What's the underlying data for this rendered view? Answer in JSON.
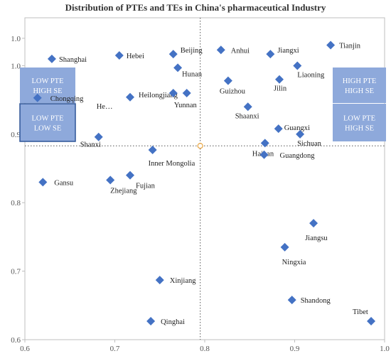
{
  "chart_data": {
    "type": "scatter",
    "title": "Distribution of PTEs and TEs in China's pharmaceutical Industry",
    "xlabel": "",
    "ylabel": "",
    "xlim": [
      0.6,
      1.0
    ],
    "x_ticks": [
      "0.6",
      "0.7",
      "0.8",
      "0.9",
      "1.0"
    ],
    "y_ticks": [
      "0.6",
      "0.7",
      "0.8",
      "0.9",
      "1.0",
      "1.0"
    ],
    "y_tick_values": [
      0.6,
      0.7,
      0.8,
      0.9,
      1.0,
      1.04
    ],
    "ylim": [
      0.6,
      1.07
    ],
    "marker_color": "#4472c4",
    "reference_lines": {
      "x": 0.795,
      "y": 0.883
    },
    "quadrants": {
      "top_left": "LOW PTE HIGH SE",
      "bottom_left": "LOW PTE LOW SE",
      "top_right": "HIGH PTE HIGH SE",
      "bottom_right": "LOW PTE HIGH SE"
    },
    "points": [
      {
        "name": "Shanghai",
        "x": 0.63,
        "y": 1.01
      },
      {
        "name": "Hebei",
        "x": 0.705,
        "y": 1.015
      },
      {
        "name": "Beijing",
        "x": 0.765,
        "y": 1.017
      },
      {
        "name": "Hunan",
        "x": 0.77,
        "y": 0.997
      },
      {
        "name": "Chongqing",
        "x": 0.614,
        "y": 0.953
      },
      {
        "name": "Heilongjiang",
        "x": 0.717,
        "y": 0.954
      },
      {
        "name": "He…",
        "x": 0.765,
        "y": 0.96
      },
      {
        "name": "Yunnan",
        "x": 0.78,
        "y": 0.96
      },
      {
        "name": "Anhui",
        "x": 0.818,
        "y": 1.023
      },
      {
        "name": "Jiangxi",
        "x": 0.873,
        "y": 1.017
      },
      {
        "name": "Tianjin",
        "x": 0.94,
        "y": 1.03
      },
      {
        "name": "Liaoning",
        "x": 0.903,
        "y": 1.0
      },
      {
        "name": "Guizhou",
        "x": 0.826,
        "y": 0.978
      },
      {
        "name": "Jilin",
        "x": 0.883,
        "y": 0.98
      },
      {
        "name": "Shaanxi",
        "x": 0.848,
        "y": 0.94
      },
      {
        "name": "Guangxi",
        "x": 0.882,
        "y": 0.908
      },
      {
        "name": "Hainan",
        "x": 0.867,
        "y": 0.887
      },
      {
        "name": "Sichuan",
        "x": 0.906,
        "y": 0.9
      },
      {
        "name": "Inner Mongolia",
        "x": 0.742,
        "y": 0.877
      },
      {
        "name": "Fujian",
        "x": 0.717,
        "y": 0.84
      },
      {
        "name": "Zhejiang",
        "x": 0.695,
        "y": 0.833
      },
      {
        "name": "Shanxi",
        "x": 0.682,
        "y": 0.896
      },
      {
        "name": "Guangdong",
        "x": 0.866,
        "y": 0.87
      },
      {
        "name": "Gansu",
        "x": 0.62,
        "y": 0.83
      },
      {
        "name": "Jiangsu",
        "x": 0.921,
        "y": 0.77
      },
      {
        "name": "Ningxia",
        "x": 0.889,
        "y": 0.735
      },
      {
        "name": "Shandong",
        "x": 0.897,
        "y": 0.658
      },
      {
        "name": "Xinjiang",
        "x": 0.75,
        "y": 0.687
      },
      {
        "name": "Qinghai",
        "x": 0.74,
        "y": 0.627
      },
      {
        "name": "Tibet",
        "x": 0.985,
        "y": 0.627
      }
    ]
  }
}
